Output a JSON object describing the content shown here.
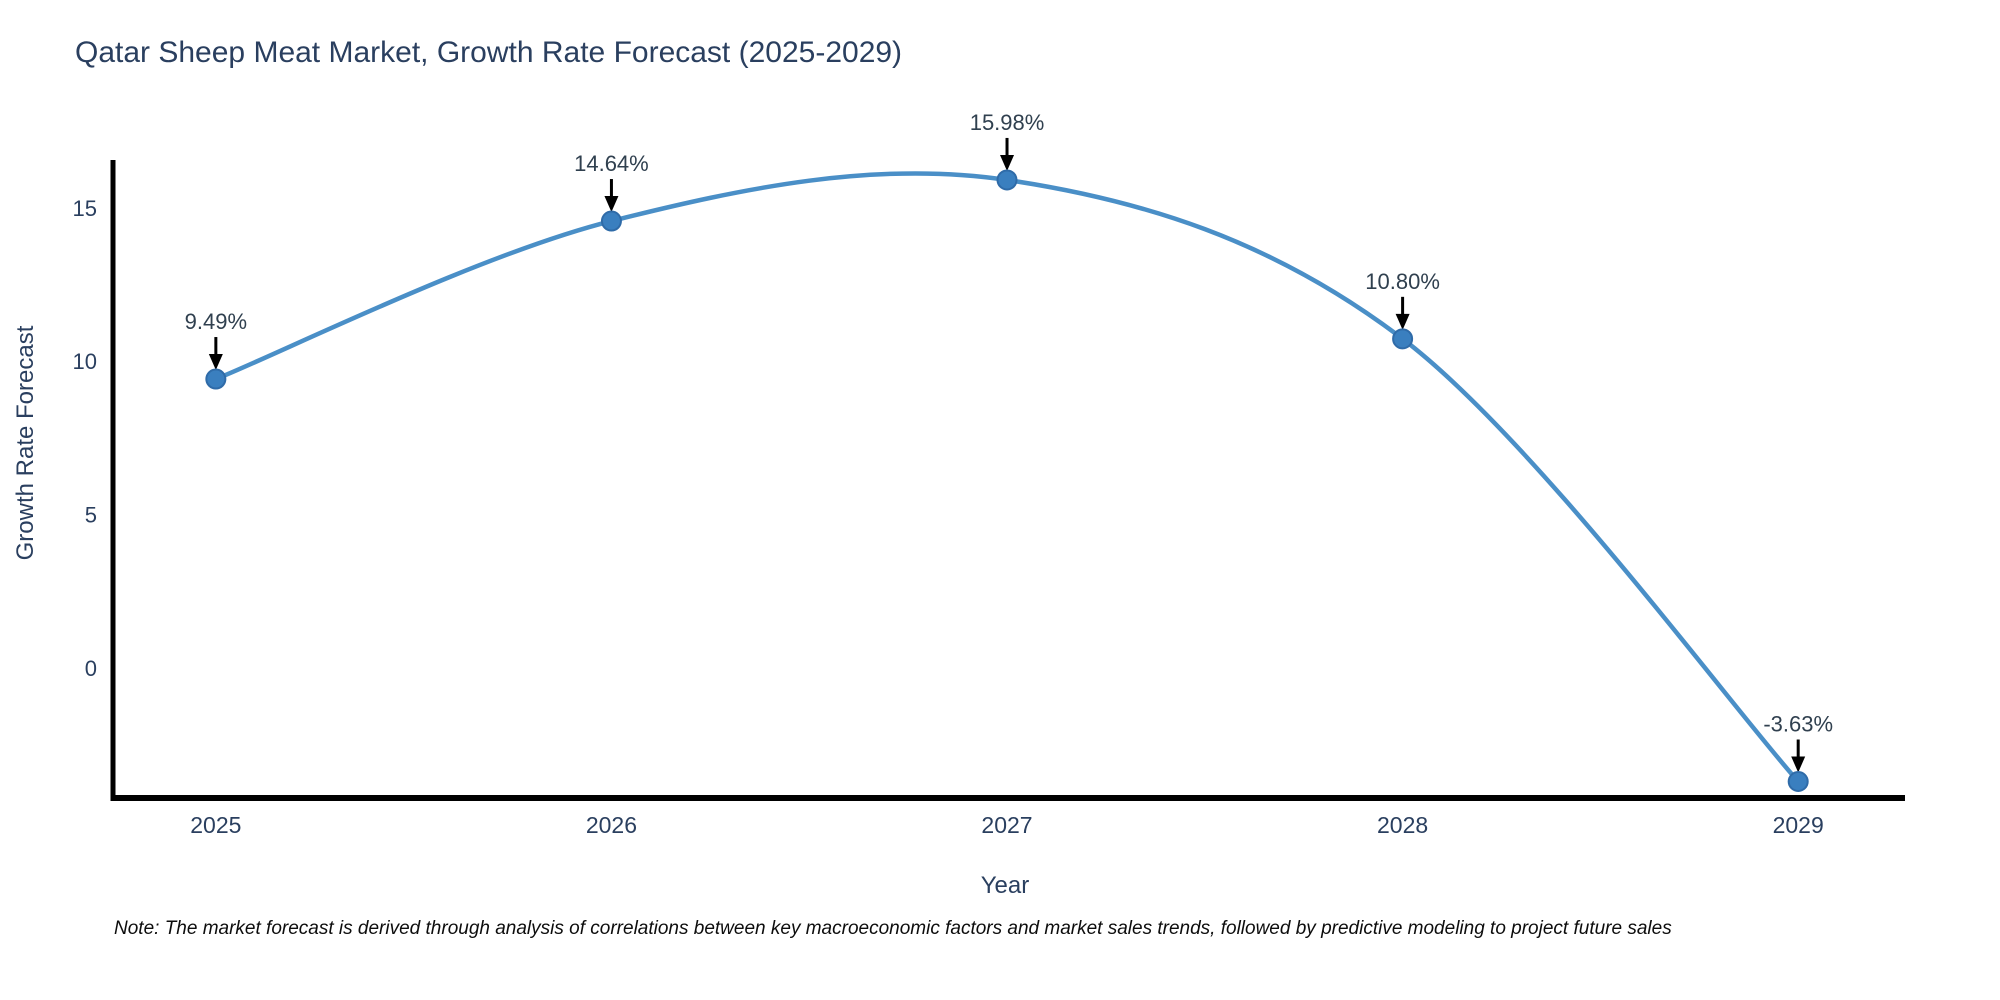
{
  "chart": {
    "title": "Qatar Sheep Meat Market, Growth Rate Forecast (2025-2029)",
    "xlabel": "Year",
    "ylabel": "Growth Rate Forecast",
    "note": "Note: The market forecast is derived through analysis of correlations between key macroeconomic factors and market sales trends, followed by predictive modeling to project future sales"
  },
  "chart_data": {
    "type": "line",
    "line_shape": "spline",
    "title": "Qatar Sheep Meat Market, Growth Rate Forecast (2025-2029)",
    "xlabel": "Year",
    "ylabel": "Growth Rate Forecast",
    "x": [
      2025,
      2026,
      2027,
      2028,
      2029
    ],
    "values": [
      9.49,
      14.64,
      15.98,
      10.8,
      -3.63
    ],
    "point_labels": [
      "9.49%",
      "14.64%",
      "15.98%",
      "10.80%",
      "-3.63%"
    ],
    "xticks": [
      2025,
      2026,
      2027,
      2028,
      2029
    ],
    "xtick_labels": [
      "2025",
      "2026",
      "2027",
      "2028",
      "2029"
    ],
    "yticks": [
      0,
      5,
      10,
      15
    ],
    "ytick_labels": [
      "0",
      "5",
      "10",
      "15"
    ],
    "xlim": [
      2024.74,
      2029.27
    ],
    "ylim": [
      -4.07,
      16.63
    ],
    "grid": false,
    "legend": "none",
    "annotations_have_arrows": true,
    "colors": {
      "line": "#4a8fc7",
      "marker": "#3a7fbf",
      "marker_edge": "#2f6ba8",
      "axis_line": "#000000",
      "chart_text": "#2a3f5f",
      "annotation_text": "#30404f",
      "annotation_arrow": "#000000",
      "note_text": "#0d0d0d",
      "background": "#ffffff"
    }
  }
}
